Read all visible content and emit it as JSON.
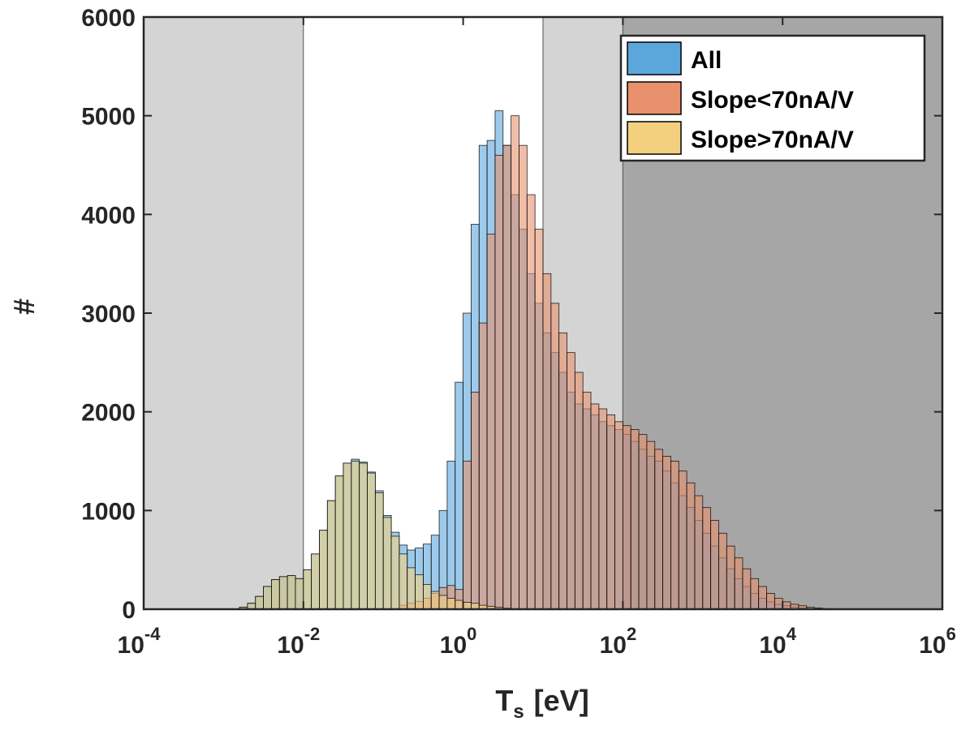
{
  "chart_data": {
    "type": "histogram",
    "title": "",
    "xlabel": "T",
    "xlabel_subscript": "s",
    "xlabel_unit": "[eV]",
    "ylabel": "#",
    "xscale": "log",
    "xlim_log10": [
      -4,
      6
    ],
    "ylim": [
      0,
      6000
    ],
    "bin_width_log10": 0.1,
    "x_ticks": [
      {
        "base": "10",
        "exp": "-4"
      },
      {
        "base": "10",
        "exp": "-2"
      },
      {
        "base": "10",
        "exp": "0"
      },
      {
        "base": "10",
        "exp": "2"
      },
      {
        "base": "10",
        "exp": "4"
      },
      {
        "base": "10",
        "exp": "6"
      }
    ],
    "y_ticks": [
      "0",
      "1000",
      "2000",
      "3000",
      "4000",
      "5000",
      "6000"
    ],
    "shaded_regions": [
      {
        "from_log10": -4,
        "to_log10": -2,
        "shade": "light"
      },
      {
        "from_log10": 1,
        "to_log10": 2,
        "shade": "light"
      },
      {
        "from_log10": 2,
        "to_log10": 6,
        "shade": "dark"
      }
    ],
    "series": [
      {
        "name": "All",
        "color": "#0072BD",
        "face": "#5BA7DC",
        "first_bin_log10": -2.8,
        "counts": [
          20,
          60,
          130,
          230,
          300,
          330,
          340,
          310,
          400,
          560,
          800,
          1100,
          1350,
          1480,
          1520,
          1490,
          1390,
          1200,
          950,
          780,
          650,
          600,
          620,
          660,
          750,
          1000,
          1500,
          2300,
          3000,
          3900,
          4700,
          4750,
          5050,
          4700,
          4200,
          3850,
          3400,
          3100,
          2800,
          2600,
          2400,
          2200,
          2080,
          2030,
          1970,
          1900,
          1860,
          1820,
          1770,
          1700,
          1620,
          1550,
          1500,
          1400,
          1280,
          1150,
          1030,
          900,
          770,
          640,
          520,
          410,
          310,
          230,
          160,
          110,
          75,
          50,
          35,
          20,
          12,
          6,
          3,
          1
        ]
      },
      {
        "name": "Slope<70nA/V",
        "color": "#D95319",
        "face": "#E8916C",
        "first_bin_log10": -0.8,
        "counts": [
          40,
          60,
          80,
          110,
          160,
          220,
          240,
          200,
          1500,
          2200,
          2900,
          3800,
          4600,
          4700,
          5000,
          4700,
          4200,
          3850,
          3400,
          3100,
          2800,
          2600,
          2400,
          2200,
          2080,
          2030,
          1970,
          1900,
          1860,
          1820,
          1770,
          1700,
          1620,
          1550,
          1500,
          1400,
          1280,
          1150,
          1030,
          900,
          770,
          640,
          520,
          410,
          310,
          230,
          160,
          110,
          75,
          50,
          35,
          20,
          12,
          6,
          3,
          1
        ]
      },
      {
        "name": "Slope>70nA/V",
        "color": "#EDB120",
        "face": "#F3D07E",
        "first_bin_log10": -2.8,
        "counts": [
          20,
          60,
          130,
          230,
          300,
          330,
          340,
          310,
          400,
          560,
          800,
          1100,
          1350,
          1480,
          1500,
          1480,
          1380,
          1180,
          930,
          740,
          560,
          420,
          350,
          250,
          180,
          140,
          110,
          90,
          70,
          60,
          40,
          30,
          20,
          10,
          5,
          2
        ]
      }
    ],
    "legend": {
      "position": "top-right",
      "labels": [
        "All",
        "Slope<70nA/V",
        "Slope>70nA/V"
      ]
    }
  }
}
